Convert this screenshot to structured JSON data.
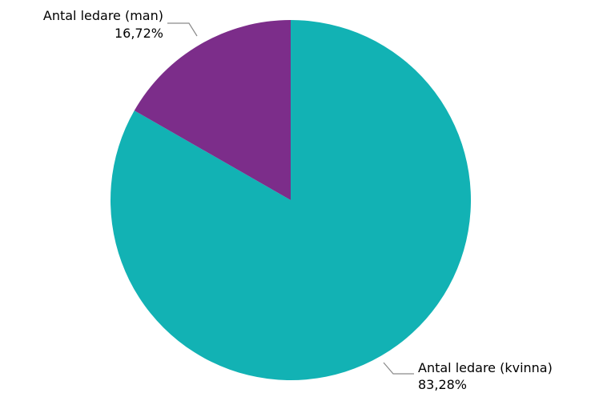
{
  "chart_data": {
    "type": "pie",
    "categories": [
      "Antal ledare (kvinna)",
      "Antal ledare (man)"
    ],
    "values": [
      83.28,
      16.72
    ],
    "value_labels": [
      "83,28%",
      "16,72%"
    ],
    "colors": [
      "#12B2B4",
      "#7C2D8A"
    ],
    "title": "",
    "legend": "none",
    "start": "top",
    "direction": "clockwise"
  }
}
